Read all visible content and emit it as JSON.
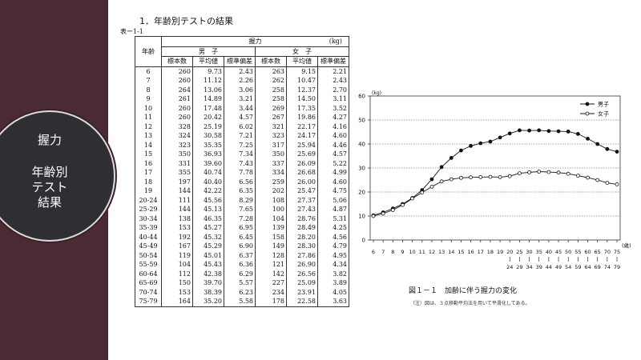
{
  "sidebar": {
    "title": "握力",
    "subtitle_lines": [
      "年齢別",
      "テスト",
      "結果"
    ]
  },
  "document": {
    "heading": "1．年齢別テストの結果",
    "table_label": "表ー1-1",
    "table": {
      "corner": "年齢",
      "group_title": "握力",
      "unit": "(kg)",
      "male": "男　子",
      "female": "女　子",
      "cols": [
        "標本数",
        "平均値",
        "標準偏差",
        "標本数",
        "平均値",
        "標準偏差"
      ],
      "rows": [
        [
          "6",
          "260",
          "9.73",
          "2.43",
          "263",
          "9.15",
          "2.21"
        ],
        [
          "7",
          "260",
          "11.12",
          "2.26",
          "262",
          "10.47",
          "2.43"
        ],
        [
          "8",
          "264",
          "13.06",
          "3.06",
          "258",
          "12.37",
          "2.70"
        ],
        [
          "9",
          "261",
          "14.89",
          "3.21",
          "258",
          "14.50",
          "3.11"
        ],
        [
          "10",
          "260",
          "17.48",
          "3.44",
          "269",
          "17.35",
          "3.52"
        ],
        [
          "11",
          "260",
          "20.42",
          "4.57",
          "267",
          "19.86",
          "4.27"
        ],
        [
          "12",
          "328",
          "25.19",
          "6.02",
          "321",
          "22.17",
          "4.16"
        ],
        [
          "13",
          "324",
          "30.58",
          "7.21",
          "323",
          "24.17",
          "4.60"
        ],
        [
          "14",
          "323",
          "35.35",
          "7.25",
          "317",
          "25.94",
          "4.46"
        ],
        [
          "15",
          "350",
          "36.93",
          "7.34",
          "350",
          "25.69",
          "4.57"
        ],
        [
          "16",
          "331",
          "39.60",
          "7.43",
          "337",
          "26.09",
          "5.22"
        ],
        [
          "17",
          "355",
          "40.74",
          "7.78",
          "334",
          "26.68",
          "4.99"
        ],
        [
          "18",
          "197",
          "40.40",
          "6.56",
          "259",
          "26.00",
          "4.60"
        ],
        [
          "19",
          "144",
          "42.22",
          "6.35",
          "202",
          "25.47",
          "4.75"
        ],
        [
          "20-24",
          "111",
          "45.56",
          "8.29",
          "108",
          "27.37",
          "5.06"
        ],
        [
          "25-29",
          "144",
          "45.13",
          "7.65",
          "100",
          "27.43",
          "4.87"
        ],
        [
          "30-34",
          "138",
          "46.35",
          "7.28",
          "104",
          "28.76",
          "5.31"
        ],
        [
          "35-39",
          "153",
          "45.27",
          "6.95",
          "139",
          "28.49",
          "4.25"
        ],
        [
          "40-44",
          "192",
          "45.32",
          "6.45",
          "158",
          "28.20",
          "4.56"
        ],
        [
          "45-49",
          "167",
          "45.29",
          "6.90",
          "149",
          "28.30",
          "4.79"
        ],
        [
          "50-54",
          "119",
          "45.01",
          "6.37",
          "128",
          "27.86",
          "4.95"
        ],
        [
          "55-59",
          "104",
          "45.43",
          "6.36",
          "121",
          "26.90",
          "4.34"
        ],
        [
          "60-64",
          "112",
          "42.38",
          "6.29",
          "142",
          "26.56",
          "3.82"
        ],
        [
          "65-69",
          "150",
          "39.70",
          "5.57",
          "227",
          "25.09",
          "3.89"
        ],
        [
          "70-74",
          "153",
          "38.39",
          "6.23",
          "234",
          "23.91",
          "4.05"
        ],
        [
          "75-79",
          "164",
          "35.20",
          "5.58",
          "178",
          "22.58",
          "3.63"
        ]
      ]
    }
  },
  "chart_data": {
    "type": "line",
    "ylabel": "(kg)",
    "xunit": "(歳)",
    "ylim": [
      0,
      60
    ],
    "yticks": [
      0,
      10,
      20,
      30,
      40,
      50,
      60
    ],
    "x_top": [
      "6",
      "7",
      "8",
      "9",
      "10",
      "11",
      "12",
      "13",
      "14",
      "15",
      "16",
      "17",
      "18",
      "19",
      "20",
      "25",
      "30",
      "35",
      "40",
      "45",
      "50",
      "55",
      "60",
      "65",
      "70",
      "75"
    ],
    "x_bottom": [
      "",
      "",
      "",
      "",
      "",
      "",
      "",
      "",
      "",
      "",
      "",
      "",
      "",
      "",
      "24",
      "29",
      "34",
      "39",
      "44",
      "49",
      "54",
      "59",
      "64",
      "69",
      "74",
      "79"
    ],
    "series": [
      {
        "name": "男子",
        "marker": "filled",
        "values": [
          10.3,
          11.5,
          13.1,
          15.0,
          17.5,
          20.8,
          25.3,
          30.4,
          34.2,
          37.3,
          39.2,
          40.3,
          41.0,
          42.7,
          44.4,
          45.7,
          45.6,
          45.7,
          45.4,
          45.3,
          45.2,
          44.2,
          42.2,
          40.0,
          37.9,
          36.8
        ]
      },
      {
        "name": "女子",
        "marker": "open",
        "values": [
          10.0,
          11.0,
          12.5,
          14.6,
          17.3,
          19.8,
          22.2,
          24.4,
          25.3,
          25.9,
          26.1,
          26.2,
          26.3,
          26.2,
          26.6,
          27.8,
          28.2,
          28.5,
          28.3,
          28.1,
          27.6,
          26.8,
          26.0,
          25.0,
          23.8,
          23.2
        ]
      }
    ]
  },
  "figure": {
    "caption": "図１－１　加齢に伴う握力の変化",
    "note": "（注）図は、３点移動平均法を用いて平滑化してある。"
  },
  "colors": {
    "sidebar": "#4a2a33",
    "circle": "#2f2f33"
  }
}
